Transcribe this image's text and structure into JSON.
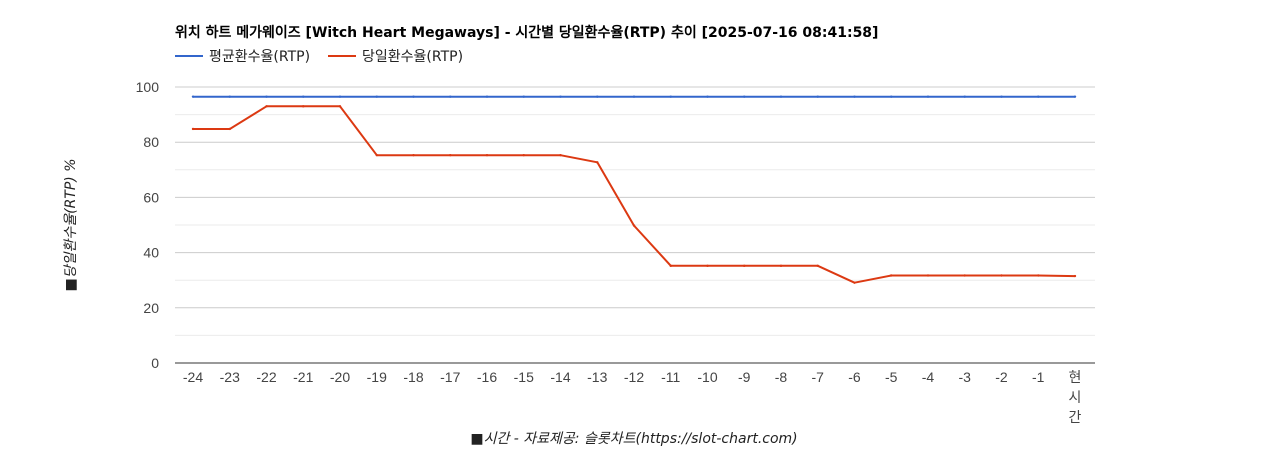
{
  "chart_data": {
    "type": "line",
    "title": "위치 하트 메가웨이즈 [Witch Heart Megaways] - 시간별 당일환수율(RTP) 추이 [2025-07-16 08:41:58]",
    "ylabel": "■당일환수율(RTP) %",
    "xlabel": "■시간 - 자료제공: 슬롯차트(https://slot-chart.com)",
    "ylim": [
      0,
      100
    ],
    "yticks": [
      "0",
      "20",
      "40",
      "60",
      "80",
      "100"
    ],
    "grid": true,
    "legend_position": "top-left",
    "categories": [
      "-24",
      "-23",
      "-22",
      "-21",
      "-20",
      "-19",
      "-18",
      "-17",
      "-16",
      "-15",
      "-14",
      "-13",
      "-12",
      "-11",
      "-10",
      "-9",
      "-8",
      "-7",
      "-6",
      "-5",
      "-4",
      "-3",
      "-2",
      "-1",
      "현\n시\n간"
    ],
    "series": [
      {
        "name": "평균환수율(RTP)",
        "color": "#3366cc",
        "values": [
          96.5,
          96.5,
          96.5,
          96.5,
          96.5,
          96.5,
          96.5,
          96.5,
          96.5,
          96.5,
          96.5,
          96.5,
          96.5,
          96.5,
          96.5,
          96.5,
          96.5,
          96.5,
          96.5,
          96.5,
          96.5,
          96.5,
          96.5,
          96.5,
          96.5
        ]
      },
      {
        "name": "당일환수율(RTP)",
        "color": "#dc3912",
        "values": [
          84.8,
          84.8,
          93,
          93,
          93,
          75.3,
          75.3,
          75.3,
          75.3,
          75.3,
          75.3,
          72.7,
          49.8,
          35.2,
          35.2,
          35.2,
          35.2,
          35.2,
          29.1,
          31.7,
          31.7,
          31.7,
          31.7,
          31.7,
          31.5
        ]
      }
    ]
  }
}
